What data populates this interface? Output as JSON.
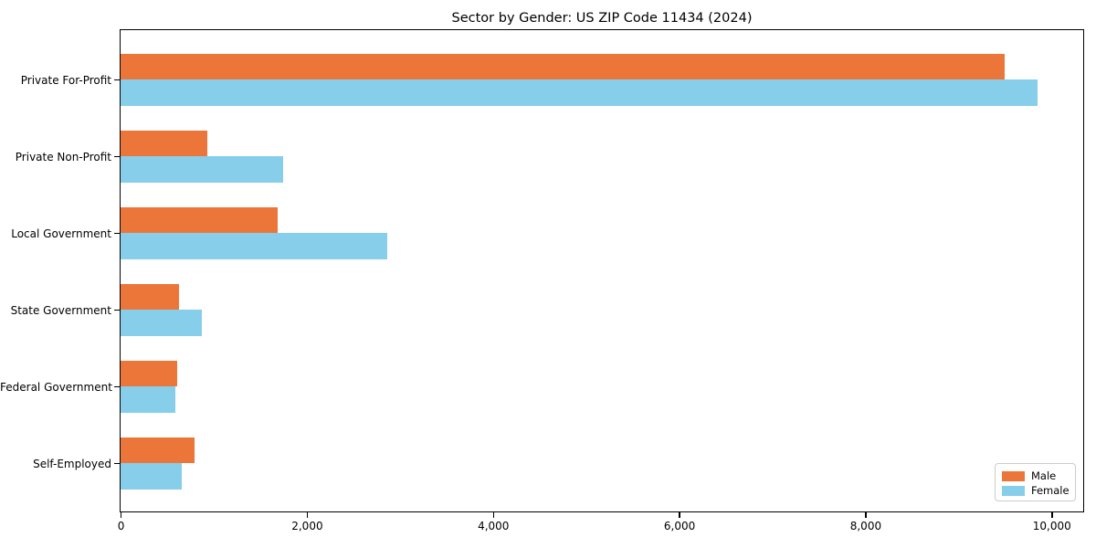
{
  "title": "Sector by Gender: US ZIP Code 11434 (2024)",
  "colors": {
    "male": "#ec763a",
    "female": "#87ceeb",
    "spine": "#000000",
    "background": "#ffffff",
    "legend_border": "#cccccc"
  },
  "legend": {
    "items": [
      {
        "label": "Male",
        "color": "#ec763a"
      },
      {
        "label": "Female",
        "color": "#87ceeb"
      }
    ],
    "position": "lower right"
  },
  "chart_data": {
    "type": "bar",
    "orientation": "horizontal",
    "title": "Sector by Gender: US ZIP Code 11434 (2024)",
    "categories": [
      "Private For-Profit",
      "Private Non-Profit",
      "Local Government",
      "State Government",
      "Federal Government",
      "Self-Employed"
    ],
    "series": [
      {
        "name": "Male",
        "color": "#ec763a",
        "values": [
          9490,
          930,
          1690,
          630,
          610,
          790
        ]
      },
      {
        "name": "Female",
        "color": "#87ceeb",
        "values": [
          9840,
          1740,
          2860,
          870,
          590,
          660
        ]
      }
    ],
    "xlabel": "",
    "ylabel": "",
    "xlim": [
      0,
      10330
    ],
    "xticks": [
      0,
      2000,
      4000,
      6000,
      8000,
      10000
    ],
    "xtick_labels": [
      "0",
      "2,000",
      "4,000",
      "6,000",
      "8,000",
      "10,000"
    ],
    "grid": false,
    "legend_position": "lower right"
  }
}
